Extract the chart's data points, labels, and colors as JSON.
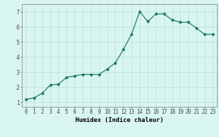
{
  "x": [
    0,
    1,
    2,
    3,
    4,
    5,
    6,
    7,
    8,
    9,
    10,
    11,
    12,
    13,
    14,
    15,
    16,
    17,
    18,
    19,
    20,
    21,
    22,
    23
  ],
  "y": [
    1.2,
    1.3,
    1.6,
    2.15,
    2.2,
    2.65,
    2.75,
    2.85,
    2.85,
    2.85,
    3.2,
    3.6,
    4.5,
    5.5,
    7.0,
    6.35,
    6.85,
    6.85,
    6.45,
    6.3,
    6.3,
    5.9,
    5.5,
    5.5
  ],
  "line_color": "#1a7a6a",
  "marker": "D",
  "marker_size": 1.8,
  "bg_color": "#d9f5f0",
  "grid_color": "#b8ddd6",
  "xlabel": "Humidex (Indice chaleur)",
  "ylim": [
    0.7,
    7.5
  ],
  "xlim": [
    -0.5,
    23.5
  ],
  "yticks": [
    1,
    2,
    3,
    4,
    5,
    6,
    7
  ],
  "xticks": [
    0,
    1,
    2,
    3,
    4,
    5,
    6,
    7,
    8,
    9,
    10,
    11,
    12,
    13,
    14,
    15,
    16,
    17,
    18,
    19,
    20,
    21,
    22,
    23
  ],
  "xlabel_fontsize": 6.5,
  "tick_fontsize": 5.5,
  "linewidth": 0.9
}
